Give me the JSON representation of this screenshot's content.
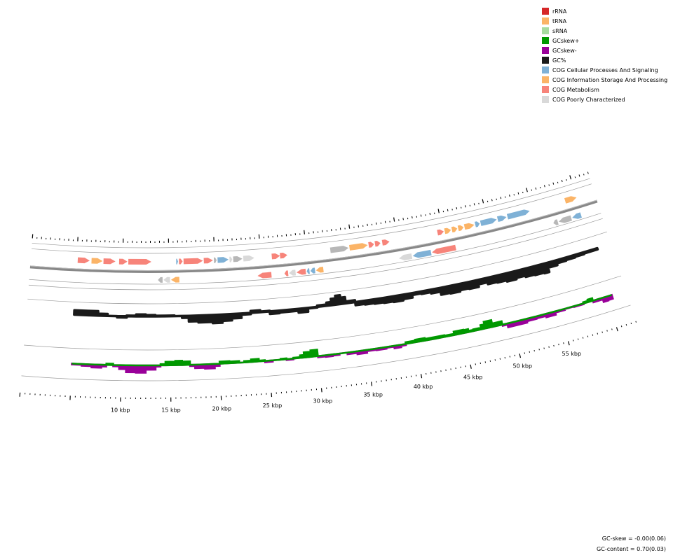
{
  "legend": [
    {
      "label": "rRNA",
      "color": "#d62728"
    },
    {
      "label": "tRNA",
      "color": "#fbb467"
    },
    {
      "label": "sRNA",
      "color": "#a6dba0"
    },
    {
      "label": "GCskew+",
      "color": "#009900"
    },
    {
      "label": "GCskew-",
      "color": "#990099"
    },
    {
      "label": "GC%",
      "color": "#1a1a1a"
    },
    {
      "label": "COG Cellular Processes And Signaling",
      "color": "#7fb1d6"
    },
    {
      "label": "COG Information Storage And Processing",
      "color": "#fbb467"
    },
    {
      "label": "COG Metabolism",
      "color": "#f7847a"
    },
    {
      "label": "COG Poorly Characterized",
      "color": "#d9d9d9"
    }
  ],
  "colors": {
    "cellular": "#7fb1d6",
    "info": "#fbb467",
    "metabolism": "#f7847a",
    "poor": "#d9d9d9",
    "poor_dark": "#b7b7b7",
    "gc": "#1a1a1a",
    "skew_pos": "#009900",
    "skew_neg": "#990099",
    "backbone": "#888888"
  },
  "kbp_labels": [
    "10 kbp",
    "15 kbp",
    "20 kbp",
    "25 kbp",
    "30 kbp",
    "35 kbp",
    "40 kbp",
    "45 kbp",
    "50 kbp",
    "55 kbp"
  ],
  "stats": {
    "gc_skew": "GC-skew = -0.00(0.06)",
    "gc_content": "GC-content = 0.70(0.03)"
  },
  "genes_forward": [
    {
      "s": 5.1,
      "e": 6.4,
      "cog": "metabolism"
    },
    {
      "s": 6.6,
      "e": 7.8,
      "cog": "info"
    },
    {
      "s": 7.9,
      "e": 9.2,
      "cog": "metabolism"
    },
    {
      "s": 9.6,
      "e": 10.5,
      "cog": "metabolism"
    },
    {
      "s": 10.6,
      "e": 13.1,
      "cog": "metabolism"
    },
    {
      "s": 15.8,
      "e": 16.0,
      "cog": "cellular"
    },
    {
      "s": 16.1,
      "e": 16.5,
      "cog": "metabolism"
    },
    {
      "s": 16.6,
      "e": 18.7,
      "cog": "metabolism"
    },
    {
      "s": 18.8,
      "e": 19.8,
      "cog": "metabolism"
    },
    {
      "s": 19.9,
      "e": 20.2,
      "cog": "poor_dark"
    },
    {
      "s": 20.3,
      "e": 21.5,
      "cog": "cellular"
    },
    {
      "s": 21.6,
      "e": 21.9,
      "cog": "poor"
    },
    {
      "s": 22.0,
      "e": 23.0,
      "cog": "poor_dark"
    },
    {
      "s": 23.1,
      "e": 24.3,
      "cog": "poor"
    },
    {
      "s": 26.2,
      "e": 27.1,
      "cog": "metabolism"
    },
    {
      "s": 27.1,
      "e": 27.9,
      "cog": "metabolism"
    },
    {
      "s": 32.6,
      "e": 34.6,
      "cog": "poor_dark"
    },
    {
      "s": 34.7,
      "e": 36.7,
      "cog": "info"
    },
    {
      "s": 36.8,
      "e": 37.4,
      "cog": "metabolism"
    },
    {
      "s": 37.5,
      "e": 38.1,
      "cog": "metabolism"
    },
    {
      "s": 38.3,
      "e": 39.1,
      "cog": "metabolism"
    },
    {
      "s": 44.4,
      "e": 45.1,
      "cog": "metabolism"
    },
    {
      "s": 45.2,
      "e": 45.9,
      "cog": "info"
    },
    {
      "s": 46.0,
      "e": 46.6,
      "cog": "info"
    },
    {
      "s": 46.7,
      "e": 47.3,
      "cog": "info"
    },
    {
      "s": 47.4,
      "e": 48.5,
      "cog": "info"
    },
    {
      "s": 48.6,
      "e": 49.1,
      "cog": "cellular"
    },
    {
      "s": 49.2,
      "e": 51.0,
      "cog": "cellular"
    },
    {
      "s": 51.1,
      "e": 52.1,
      "cog": "cellular"
    },
    {
      "s": 52.2,
      "e": 54.7,
      "cog": "cellular"
    },
    {
      "s": 58.7,
      "e": 60.0,
      "cog": "info"
    }
  ],
  "genes_reverse": [
    {
      "s": 13.8,
      "e": 14.3,
      "cog": "poor_dark"
    },
    {
      "s": 14.4,
      "e": 15.1,
      "cog": "poor"
    },
    {
      "s": 15.2,
      "e": 16.1,
      "cog": "info"
    },
    {
      "s": 24.5,
      "e": 26.0,
      "cog": "metabolism"
    },
    {
      "s": 27.4,
      "e": 27.8,
      "cog": "metabolism"
    },
    {
      "s": 27.9,
      "e": 28.6,
      "cog": "poor"
    },
    {
      "s": 28.7,
      "e": 29.7,
      "cog": "metabolism"
    },
    {
      "s": 29.8,
      "e": 30.1,
      "cog": "cellular"
    },
    {
      "s": 30.2,
      "e": 30.7,
      "cog": "cellular"
    },
    {
      "s": 30.8,
      "e": 31.6,
      "cog": "info"
    },
    {
      "s": 39.8,
      "e": 41.2,
      "cog": "poor"
    },
    {
      "s": 41.3,
      "e": 43.3,
      "cog": "cellular"
    },
    {
      "s": 43.4,
      "e": 46.0,
      "cog": "metabolism"
    },
    {
      "s": 56.8,
      "e": 57.3,
      "cog": "poor_dark"
    },
    {
      "s": 57.4,
      "e": 58.8,
      "cog": "poor_dark"
    },
    {
      "s": 58.9,
      "e": 59.9,
      "cog": "cellular"
    }
  ],
  "gc_content": [
    [
      5.0,
      7
    ],
    [
      6.5,
      7
    ],
    [
      7.5,
      3
    ],
    [
      8.5,
      0
    ],
    [
      9.5,
      -2
    ],
    [
      10.5,
      1
    ],
    [
      11.5,
      3
    ],
    [
      12.5,
      2
    ],
    [
      13.5,
      1
    ],
    [
      14.5,
      1
    ],
    [
      15.5,
      0
    ],
    [
      16.3,
      -3
    ],
    [
      17.0,
      -9
    ],
    [
      18.0,
      -11
    ],
    [
      19.5,
      -13
    ],
    [
      20.5,
      -10
    ],
    [
      21.5,
      -7
    ],
    [
      22.5,
      -2
    ],
    [
      23.5,
      3
    ],
    [
      24.5,
      1
    ],
    [
      25.5,
      -4
    ],
    [
      26.5,
      -3
    ],
    [
      27.5,
      -3
    ],
    [
      28.5,
      -6
    ],
    [
      29.5,
      -1
    ],
    [
      30.5,
      2
    ],
    [
      31.5,
      5
    ],
    [
      32.0,
      10
    ],
    [
      32.5,
      14
    ],
    [
      33.0,
      10
    ],
    [
      33.5,
      3
    ],
    [
      34.5,
      -5
    ],
    [
      35.5,
      -6
    ],
    [
      36.5,
      -7
    ],
    [
      37.5,
      -8
    ],
    [
      38.5,
      -9
    ],
    [
      39.5,
      -7
    ],
    [
      40.5,
      -3
    ],
    [
      41.5,
      -4
    ],
    [
      42.5,
      -6
    ],
    [
      43.5,
      -11
    ],
    [
      44.5,
      -12
    ],
    [
      45.5,
      -10
    ],
    [
      46.5,
      -11
    ],
    [
      47.5,
      -7
    ],
    [
      48.5,
      -10
    ],
    [
      49.5,
      -11
    ],
    [
      50.5,
      -13
    ],
    [
      51.5,
      -11
    ],
    [
      52.5,
      -13
    ],
    [
      53.5,
      -14
    ],
    [
      54.5,
      -15
    ],
    [
      55.0,
      -8
    ],
    [
      56.0,
      -5
    ],
    [
      57.0,
      -4
    ],
    [
      58.0,
      -3
    ],
    [
      59.0,
      -2
    ],
    [
      60.0,
      -2
    ]
  ],
  "gc_skew": [
    [
      5.0,
      -2
    ],
    [
      6.0,
      -4
    ],
    [
      7.0,
      -7
    ],
    [
      8.0,
      -4
    ],
    [
      8.5,
      3
    ],
    [
      9.2,
      -3
    ],
    [
      9.8,
      -9
    ],
    [
      10.5,
      -16
    ],
    [
      11.5,
      -17
    ],
    [
      12.5,
      -10
    ],
    [
      13.5,
      -3
    ],
    [
      14.0,
      3
    ],
    [
      14.5,
      8
    ],
    [
      15.5,
      10
    ],
    [
      16.2,
      8
    ],
    [
      17.0,
      -3
    ],
    [
      17.5,
      -8
    ],
    [
      18.5,
      -10
    ],
    [
      19.5,
      -5
    ],
    [
      20.0,
      5
    ],
    [
      21.0,
      4
    ],
    [
      22.0,
      0
    ],
    [
      22.5,
      3
    ],
    [
      23.2,
      6
    ],
    [
      24.0,
      2
    ],
    [
      24.6,
      -3
    ],
    [
      25.4,
      0
    ],
    [
      26.2,
      2
    ],
    [
      26.8,
      -2
    ],
    [
      27.5,
      2
    ],
    [
      28.2,
      6
    ],
    [
      28.6,
      12
    ],
    [
      29.3,
      15
    ],
    [
      30.0,
      -3
    ],
    [
      30.8,
      -4
    ],
    [
      31.5,
      -3
    ],
    [
      32.2,
      0
    ],
    [
      33.0,
      -4
    ],
    [
      34.0,
      -7
    ],
    [
      35.0,
      -3
    ],
    [
      36.0,
      -4
    ],
    [
      37.0,
      -2
    ],
    [
      37.8,
      -6
    ],
    [
      38.5,
      -3
    ],
    [
      39.0,
      4
    ],
    [
      40.0,
      6
    ],
    [
      41.0,
      4
    ],
    [
      42.0,
      4
    ],
    [
      43.0,
      3
    ],
    [
      44.0,
      8
    ],
    [
      45.0,
      7
    ],
    [
      45.5,
      3
    ],
    [
      46.0,
      4
    ],
    [
      46.8,
      10
    ],
    [
      47.2,
      16
    ],
    [
      48.0,
      8
    ],
    [
      49.0,
      -3
    ],
    [
      49.5,
      -9
    ],
    [
      50.5,
      -9
    ],
    [
      51.5,
      -6
    ],
    [
      52.5,
      -5
    ],
    [
      53.5,
      -8
    ],
    [
      54.5,
      -3
    ],
    [
      55.5,
      -1
    ],
    [
      56.5,
      -2
    ],
    [
      57.5,
      3
    ],
    [
      58.0,
      6
    ],
    [
      58.5,
      -4
    ],
    [
      59.5,
      -10
    ],
    [
      60.0,
      -9
    ]
  ]
}
